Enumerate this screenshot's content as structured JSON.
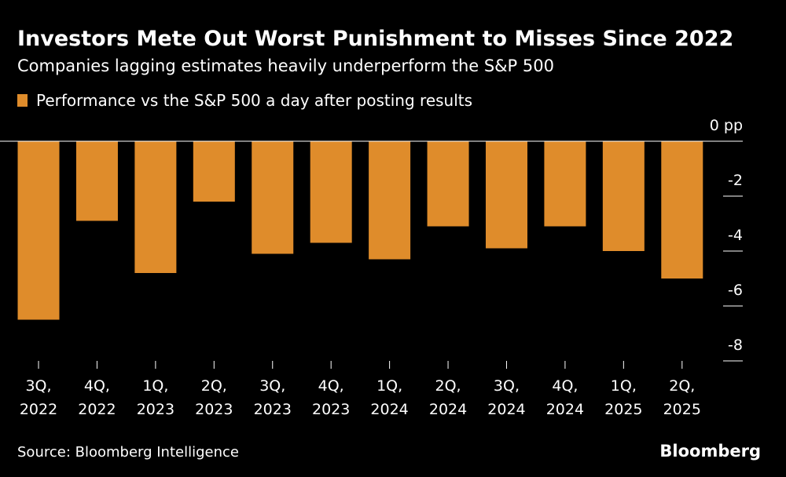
{
  "chart_data": {
    "type": "bar",
    "title": "Investors Mete Out Worst Punishment to Misses Since 2022",
    "subtitle": "Companies lagging estimates heavily underperform the S&P 500",
    "legend": "Performance vs the S&P 500 a day after posting results",
    "categories": [
      "3Q, 2022",
      "4Q, 2022",
      "1Q, 2023",
      "2Q, 2023",
      "3Q, 2023",
      "4Q, 2023",
      "1Q, 2024",
      "2Q, 2024",
      "3Q, 2024",
      "4Q, 2024",
      "1Q, 2025",
      "2Q, 2025"
    ],
    "values": [
      -6.5,
      -2.9,
      -4.8,
      -2.2,
      -4.1,
      -3.7,
      -4.3,
      -3.1,
      -3.9,
      -3.1,
      -4.0,
      -5.0
    ],
    "color": "#df8c2b",
    "ylim": [
      -8,
      0
    ],
    "yticks": [
      {
        "value": 0,
        "label": "0 pp"
      },
      -2,
      -4,
      -6,
      -8
    ],
    "source": "Source: Bloomberg Intelligence",
    "brand": "Bloomberg"
  }
}
